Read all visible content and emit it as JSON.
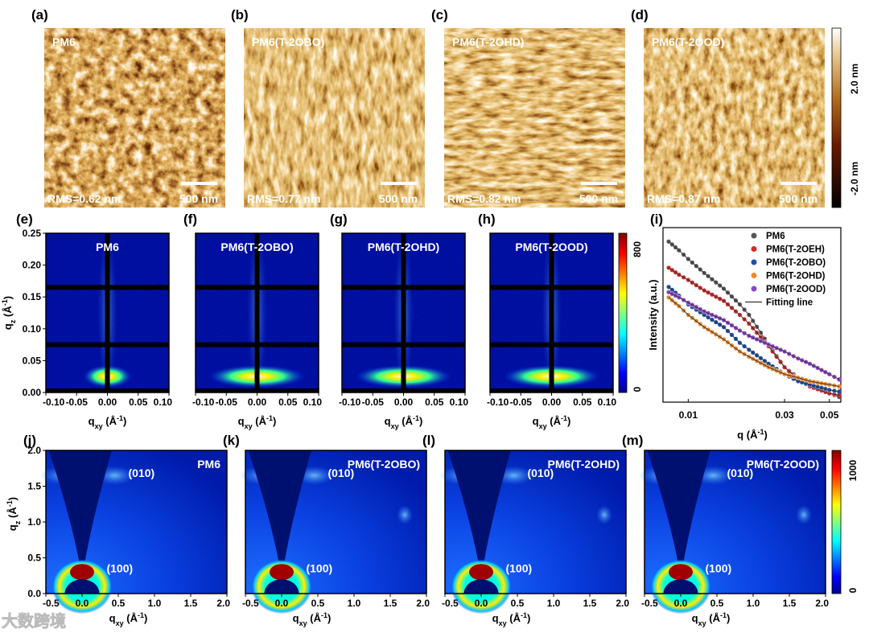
{
  "afm": {
    "colorbar": {
      "max_label": "2.0 nm",
      "min_label": "-2.0 nm"
    },
    "scalebar_label": "500 nm",
    "panels": [
      {
        "tag": "(a)",
        "title": "PM6",
        "rms": "RMS=0.62 nm"
      },
      {
        "tag": "(b)",
        "title": "PM6(T-2OBO)",
        "rms": "RMS=0.77 nm"
      },
      {
        "tag": "(c)",
        "title": "PM6(T-2OHD)",
        "rms": "RMS=0.82 nm"
      },
      {
        "tag": "(d)",
        "title": "PM6(T-2OOD)",
        "rms": "RMS=0.87 nm"
      }
    ]
  },
  "gisaxs": {
    "panels": [
      {
        "tag": "(e)",
        "title": "PM6"
      },
      {
        "tag": "(f)",
        "title": "PM6(T-2OBO)"
      },
      {
        "tag": "(g)",
        "title": "PM6(T-2OHD)"
      },
      {
        "tag": "(h)",
        "title": "PM6(T-2OOD)"
      }
    ],
    "x_ticks": [
      "-0.10",
      "-0.05",
      "0.00",
      "0.05",
      "0.10"
    ],
    "y_ticks": [
      "0.00",
      "0.05",
      "0.10",
      "0.15",
      "0.20",
      "0.25"
    ],
    "xlabel": {
      "base": "q",
      "sub": "xy",
      "unit": " (Å",
      "exp": "-1",
      "close": ")"
    },
    "ylabel": {
      "base": "q",
      "sub": "z",
      "unit": " (Å",
      "exp": "-1",
      "close": ")"
    },
    "colorbar": {
      "max_label": "800",
      "min_label": "0"
    }
  },
  "giwaxs": {
    "panels": [
      {
        "tag": "(j)",
        "title": "PM6"
      },
      {
        "tag": "(k)",
        "title": "PM6(T-2OBO)"
      },
      {
        "tag": "(l)",
        "title": "PM6(T-2OHD)"
      },
      {
        "tag": "(m)",
        "title": "PM6(T-2OOD)"
      }
    ],
    "peak_010": "(010)",
    "peak_100": "(100)",
    "x_ticks": [
      "-0.5",
      "0.0",
      "0.5",
      "1.0",
      "1.5",
      "2.0"
    ],
    "y_ticks": [
      "0.0",
      "0.5",
      "1.0",
      "1.5",
      "2.0"
    ],
    "xlabel": {
      "base": "q",
      "sub": "xy",
      "unit": " (Å",
      "exp": "-1",
      "close": ")"
    },
    "ylabel": {
      "base": "q",
      "sub": "z",
      "unit": " (Å",
      "exp": "-1",
      "close": ")"
    },
    "colorbar": {
      "max_label": "1000",
      "min_label": "0"
    }
  },
  "watermark": "大数跨境",
  "chart_data": {
    "type": "scatter",
    "tag": "(i)",
    "xlabel": {
      "base": "q",
      "unit": " (Å",
      "exp": "-1",
      "close": ")"
    },
    "ylabel": "Intensity (a.u.)",
    "xscale": "log",
    "xlim": [
      0.0075,
      0.057
    ],
    "ylim": [
      0,
      1
    ],
    "x_ticks": [
      {
        "v": 0.01,
        "label": "0.01"
      },
      {
        "v": 0.03,
        "label": "0.03"
      },
      {
        "v": 0.05,
        "label": "0.05"
      }
    ],
    "legend_position": "top-right",
    "fit_label": "Fitting line",
    "x": [
      0.008,
      0.009,
      0.01,
      0.012,
      0.015,
      0.018,
      0.02,
      0.025,
      0.03,
      0.035,
      0.04,
      0.05,
      0.056
    ],
    "series": [
      {
        "name": "PM6",
        "color": "#555555",
        "values": [
          0.92,
          0.87,
          0.82,
          0.74,
          0.65,
          0.56,
          0.5,
          0.33,
          0.2,
          0.14,
          0.1,
          0.05,
          0.03
        ]
      },
      {
        "name": "PM6(T-2OEH)",
        "color": "#d62728",
        "values": [
          0.77,
          0.73,
          0.7,
          0.64,
          0.58,
          0.5,
          0.45,
          0.32,
          0.2,
          0.13,
          0.09,
          0.05,
          0.04
        ]
      },
      {
        "name": "PM6(T-2OBO)",
        "color": "#1f4fa8",
        "values": [
          0.66,
          0.61,
          0.56,
          0.5,
          0.43,
          0.34,
          0.3,
          0.22,
          0.16,
          0.12,
          0.1,
          0.07,
          0.06
        ]
      },
      {
        "name": "PM6(T-2OHD)",
        "color": "#f0882a",
        "values": [
          0.6,
          0.55,
          0.5,
          0.43,
          0.36,
          0.29,
          0.26,
          0.2,
          0.16,
          0.14,
          0.12,
          0.1,
          0.09
        ]
      },
      {
        "name": "PM6(T-2OOD)",
        "color": "#8e44c8",
        "values": [
          0.63,
          0.6,
          0.57,
          0.52,
          0.47,
          0.41,
          0.38,
          0.33,
          0.29,
          0.25,
          0.22,
          0.16,
          0.13
        ]
      }
    ]
  }
}
